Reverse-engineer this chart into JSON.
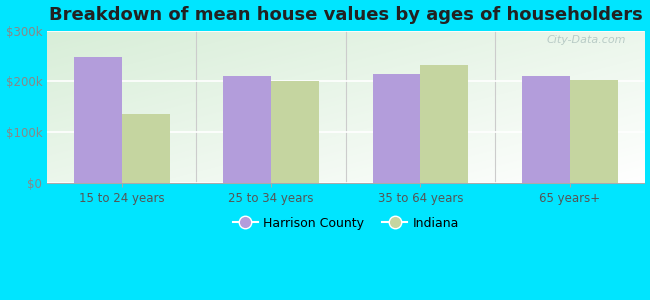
{
  "title": "Breakdown of mean house values by ages of householders",
  "categories": [
    "15 to 24 years",
    "25 to 34 years",
    "35 to 64 years",
    "65 years+"
  ],
  "harrison_county": [
    248000,
    210000,
    215000,
    210000
  ],
  "indiana": [
    135000,
    200000,
    232000,
    202000
  ],
  "bar_color_harrison": "#b39ddb",
  "bar_color_indiana": "#c5d5a0",
  "ylim": [
    0,
    300000
  ],
  "yticks": [
    0,
    100000,
    200000,
    300000
  ],
  "ytick_labels": [
    "$0",
    "$100k",
    "$200k",
    "$300k"
  ],
  "outer_background": "#00e5ff",
  "legend_harrison": "Harrison County",
  "legend_indiana": "Indiana",
  "watermark": "City-Data.com",
  "title_fontsize": 13,
  "bar_width": 0.32,
  "grad_top": "#f5fcf5",
  "grad_bottom": "#d8eeda"
}
